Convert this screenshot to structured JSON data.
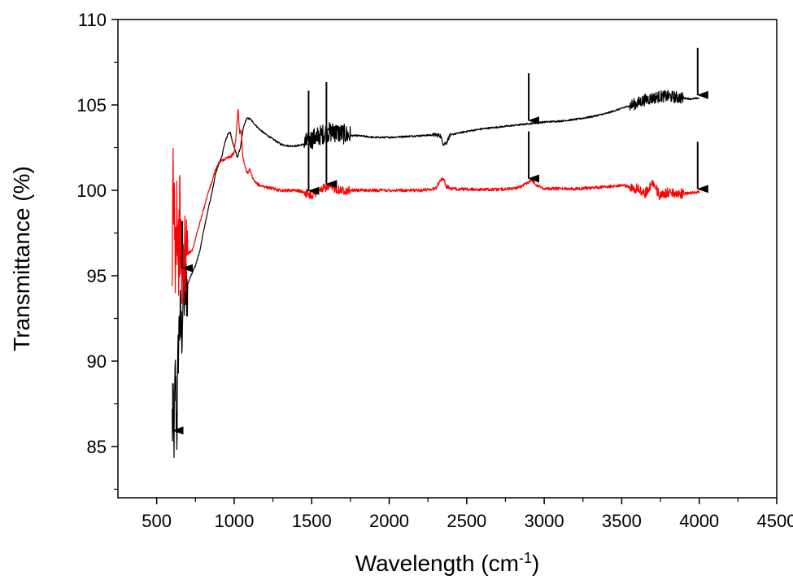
{
  "chart_data": {
    "type": "line",
    "xlabel": "Wavelength (cm",
    "xlabel_sup": "-1",
    "xlabel_close": ")",
    "ylabel": "Transmittance (%)",
    "xlim": [
      250,
      4500
    ],
    "ylim": [
      82,
      110
    ],
    "xticks": [
      "500",
      "1000",
      "1500",
      "2000",
      "2500",
      "3000",
      "3500",
      "4000",
      "4500"
    ],
    "yticks": [
      "85",
      "90",
      "95",
      "100",
      "105",
      "110"
    ],
    "grid": false,
    "legend": "none",
    "series": [
      {
        "color": "#000000",
        "x": [
          600,
          610,
          620,
          630,
          640,
          650,
          660,
          670,
          680,
          700,
          720,
          750,
          780,
          800,
          830,
          860,
          880,
          900,
          920,
          940,
          960,
          975,
          990,
          1005,
          1020,
          1040,
          1060,
          1080,
          1100,
          1130,
          1160,
          1200,
          1250,
          1300,
          1350,
          1400,
          1450,
          1500,
          1550,
          1600,
          1650,
          1700,
          1750,
          1800,
          1900,
          2000,
          2100,
          2200,
          2300,
          2330,
          2350,
          2370,
          2390,
          2420,
          2500,
          2600,
          2700,
          2800,
          2900,
          3000,
          3100,
          3200,
          3300,
          3400,
          3500,
          3600,
          3650,
          3700,
          3750,
          3800,
          3850,
          3900,
          3950,
          4000
        ],
        "y": [
          86.5,
          85.0,
          89.0,
          86.0,
          91.0,
          92.5,
          91.5,
          93.5,
          94.0,
          94.5,
          95.0,
          95.6,
          96.5,
          97.5,
          98.8,
          100.0,
          101.0,
          101.5,
          102.0,
          102.8,
          103.3,
          103.4,
          102.8,
          102.4,
          101.9,
          102.5,
          103.7,
          104.2,
          104.2,
          103.9,
          103.6,
          103.3,
          103.0,
          102.7,
          102.6,
          102.6,
          102.7,
          103.0,
          103.2,
          103.4,
          103.4,
          103.3,
          103.2,
          103.2,
          103.1,
          103.1,
          103.15,
          103.2,
          103.25,
          103.2,
          102.7,
          102.8,
          103.2,
          103.3,
          103.45,
          103.6,
          103.7,
          103.8,
          103.9,
          104.0,
          104.05,
          104.15,
          104.3,
          104.5,
          104.8,
          105.1,
          105.3,
          105.4,
          105.5,
          105.5,
          105.45,
          105.4,
          105.35,
          105.4
        ]
      },
      {
        "color": "#ff0000",
        "x": [
          600,
          605,
          610,
          615,
          620,
          630,
          640,
          650,
          660,
          680,
          700,
          730,
          760,
          800,
          830,
          860,
          880,
          900,
          930,
          960,
          980,
          1000,
          1015,
          1025,
          1035,
          1045,
          1055,
          1070,
          1085,
          1100,
          1115,
          1130,
          1160,
          1200,
          1250,
          1300,
          1350,
          1400,
          1450,
          1500,
          1550,
          1600,
          1700,
          1800,
          1900,
          2000,
          2100,
          2200,
          2300,
          2330,
          2350,
          2370,
          2400,
          2500,
          2600,
          2700,
          2800,
          2850,
          2880,
          2900,
          2920,
          2950,
          3000,
          3200,
          3400,
          3500,
          3600,
          3650,
          3700,
          3750,
          3800,
          3900,
          4000
        ],
        "y": [
          92.0,
          102.0,
          97.5,
          99.5,
          96.5,
          99.5,
          96.0,
          98.5,
          95.0,
          96.0,
          96.3,
          96.5,
          97.5,
          98.8,
          99.8,
          100.6,
          101.2,
          101.6,
          101.8,
          101.9,
          102.0,
          102.2,
          103.5,
          104.8,
          103.3,
          103.6,
          102.0,
          101.4,
          101.0,
          101.2,
          100.8,
          100.5,
          100.3,
          100.2,
          100.1,
          100.0,
          100.0,
          100.0,
          99.9,
          99.7,
          100.0,
          100.2,
          100.0,
          100.0,
          100.0,
          100.0,
          100.0,
          100.0,
          100.1,
          100.6,
          100.7,
          100.2,
          100.1,
          100.05,
          100.05,
          100.05,
          100.1,
          100.2,
          100.4,
          100.5,
          100.6,
          100.3,
          100.1,
          100.1,
          100.2,
          100.3,
          100.1,
          99.8,
          100.5,
          99.6,
          99.9,
          99.8,
          99.9
        ]
      }
    ],
    "annotations": [
      {
        "type": "arrow",
        "series": 0,
        "x": 605
      },
      {
        "type": "arrow",
        "series": 1,
        "x": 665
      },
      {
        "type": "arrow",
        "series": 0,
        "x": 1480
      },
      {
        "type": "arrow",
        "series": 0,
        "x": 1595
      },
      {
        "type": "arrow",
        "series": 0,
        "x": 2900
      },
      {
        "type": "arrow",
        "series": 0,
        "x": 3990
      },
      {
        "type": "arrow",
        "series": 1,
        "x": 1480
      },
      {
        "type": "arrow",
        "series": 1,
        "x": 1595
      },
      {
        "type": "arrow",
        "series": 1,
        "x": 2900
      },
      {
        "type": "arrow",
        "series": 1,
        "x": 3990
      }
    ]
  }
}
